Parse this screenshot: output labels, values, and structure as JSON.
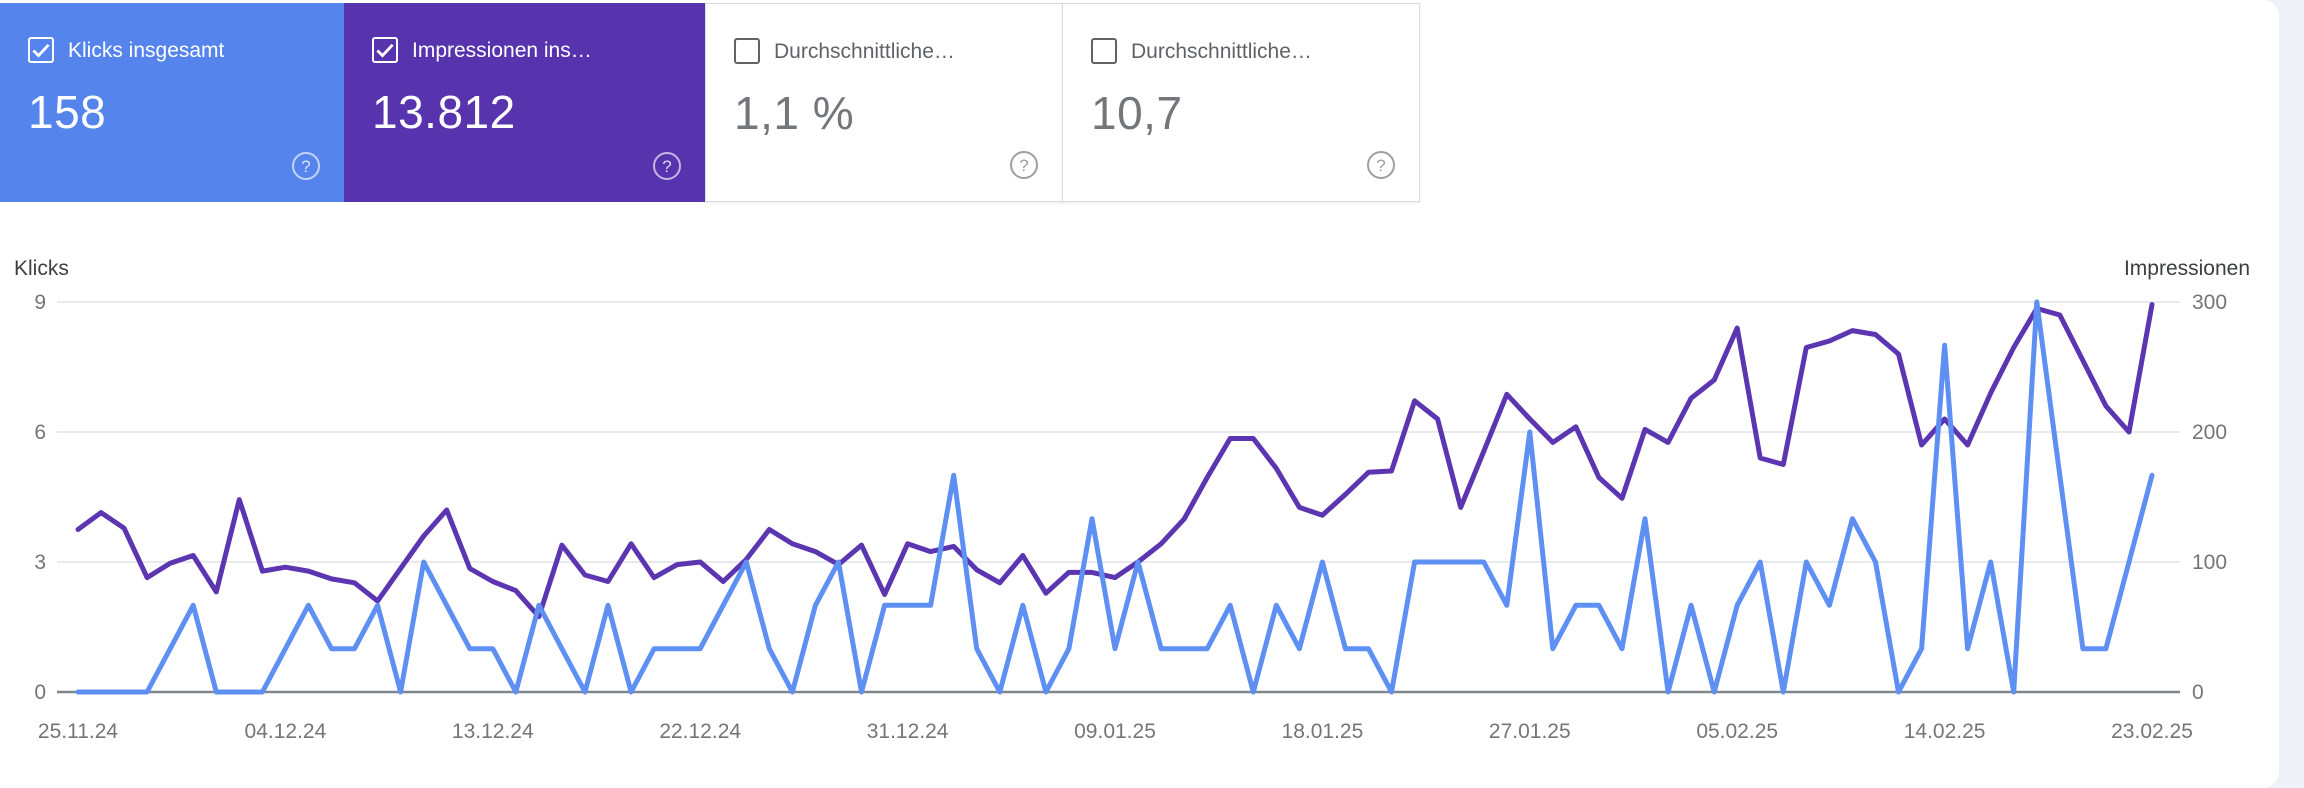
{
  "page": {
    "background_color": "#EEF1F8",
    "surface_color": "#FFFFFF"
  },
  "icons": {
    "help_glyph": "?",
    "checkbox_checked": "checkbox-checked-icon",
    "checkbox_unchecked": "checkbox-unchecked-icon"
  },
  "cards": [
    {
      "label": "Klicks insgesamt",
      "value": "158",
      "checked": true,
      "background": "#5484EC",
      "text_color": "#FFFFFF"
    },
    {
      "label": "Impressionen ins…",
      "value": "13.812",
      "checked": true,
      "background": "#5733AE",
      "text_color": "#FFFFFF"
    },
    {
      "label": "Durchschnittliche…",
      "value": "1,1 %",
      "checked": false,
      "background": "#FFFFFF",
      "text_color": "#73767A"
    },
    {
      "label": "Durchschnittliche…",
      "value": "10,7",
      "checked": false,
      "background": "#FFFFFF",
      "text_color": "#73767A"
    }
  ],
  "chart_data": {
    "type": "line",
    "points": 91,
    "x_tick_labels": [
      "25.11.24",
      "04.12.24",
      "13.12.24",
      "22.12.24",
      "31.12.24",
      "09.01.25",
      "18.01.25",
      "27.01.25",
      "05.02.25",
      "14.02.25",
      "23.02.25"
    ],
    "left_axis": {
      "title": "Klicks",
      "range": [
        0,
        9
      ],
      "ticks": [
        0,
        3,
        6,
        9
      ]
    },
    "right_axis": {
      "title": "Impressionen",
      "range": [
        0,
        300
      ],
      "ticks": [
        0,
        100,
        200,
        300
      ]
    },
    "grid": {
      "light_line_color": "#E8EAED",
      "baseline_color": "#80868B",
      "tick_text_color": "#757575"
    },
    "legend_position": "none",
    "series": [
      {
        "name": "Klicks",
        "axis": "left",
        "color": "#5E8FF2",
        "values": [
          0,
          0,
          0,
          0,
          1,
          2,
          0,
          0,
          0,
          1,
          2,
          1,
          1,
          2,
          0,
          3,
          2,
          1,
          1,
          0,
          2,
          1,
          0,
          2,
          0,
          1,
          1,
          1,
          2,
          3,
          1,
          0,
          2,
          3,
          0,
          2,
          2,
          2,
          5,
          1,
          0,
          2,
          0,
          1,
          4,
          1,
          3,
          1,
          1,
          1,
          2,
          0,
          2,
          1,
          3,
          1,
          1,
          0,
          3,
          3,
          3,
          3,
          2,
          6,
          1,
          2,
          2,
          1,
          4,
          0,
          2,
          0,
          2,
          3,
          0,
          3,
          2,
          4,
          3,
          0,
          1,
          8,
          1,
          3,
          0,
          9,
          5,
          1,
          1,
          3,
          5
        ]
      },
      {
        "name": "Impressionen",
        "axis": "right",
        "color": "#5C35B1",
        "values": [
          125,
          138,
          126,
          88,
          99,
          105,
          77,
          148,
          93,
          96,
          93,
          87,
          84,
          70,
          95,
          120,
          140,
          95,
          85,
          78,
          58,
          113,
          90,
          85,
          114,
          88,
          98,
          100,
          85,
          102,
          125,
          114,
          108,
          98,
          113,
          75,
          114,
          108,
          112,
          94,
          84,
          105,
          76,
          92,
          92,
          88,
          100,
          114,
          133,
          165,
          195,
          195,
          172,
          142,
          136,
          152,
          169,
          170,
          224,
          210,
          142,
          185,
          229,
          210,
          192,
          204,
          165,
          149,
          202,
          192,
          226,
          240,
          280,
          180,
          175,
          265,
          270,
          278,
          275,
          260,
          190,
          210,
          190,
          230,
          265,
          295,
          290,
          255,
          220,
          200,
          298
        ]
      }
    ],
    "totals": {
      "klicks": "158",
      "impressionen": "13.812"
    }
  }
}
